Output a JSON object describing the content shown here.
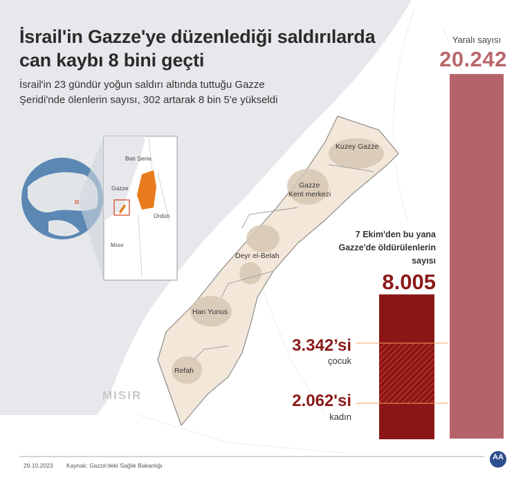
{
  "header": {
    "title_line1": "İsrail'in Gazze'ye düzenlediği saldırılarda",
    "title_line2": "can kaybı 8 bini geçti",
    "subtitle_line1": "İsrail'in 23 gündür yoğun saldırı altında tuttuğu Gazze",
    "subtitle_line2": "Şeridi'nde ölenlerin sayısı, 302 artarak 8 bin 5'e yükseldi"
  },
  "map": {
    "regions": [
      "Kuzey Gazze",
      "Gazze",
      "Kent merkezi",
      "Deyr el-Belah",
      "Han Yunus",
      "Refah"
    ],
    "country_label": "MISIR",
    "inset_labels": [
      "Batı Şeria",
      "Gazze",
      "Ürdün",
      "Mısır"
    ]
  },
  "chart_data": {
    "type": "bar",
    "categories": [
      "Yaralı sayısı",
      "7 Ekim'den bu yana Gazze'de öldürülenlerin sayısı"
    ],
    "values": [
      20242,
      8005
    ],
    "value_labels": [
      "20.242",
      "8.005"
    ],
    "breakdown": [
      {
        "value": 3342,
        "value_label": "3.342’si",
        "label": "çocuk"
      },
      {
        "value": 2062,
        "value_label": "2.062'si",
        "label": "kadın"
      }
    ],
    "injured_label": "Yaralı sayısı",
    "killed_label_lines": [
      "7 Ekim'den bu yana",
      "Gazze'de öldürülenlerin",
      "sayısı"
    ],
    "colors": {
      "injured": "#b5636a",
      "killed": "#8b1616",
      "hatch": "#c23a2a"
    }
  },
  "footer": {
    "date": "29.10.2023",
    "source": "Kaynak: Gazze'deki Sağlık Bakanlığı",
    "logo_text": "AA"
  }
}
